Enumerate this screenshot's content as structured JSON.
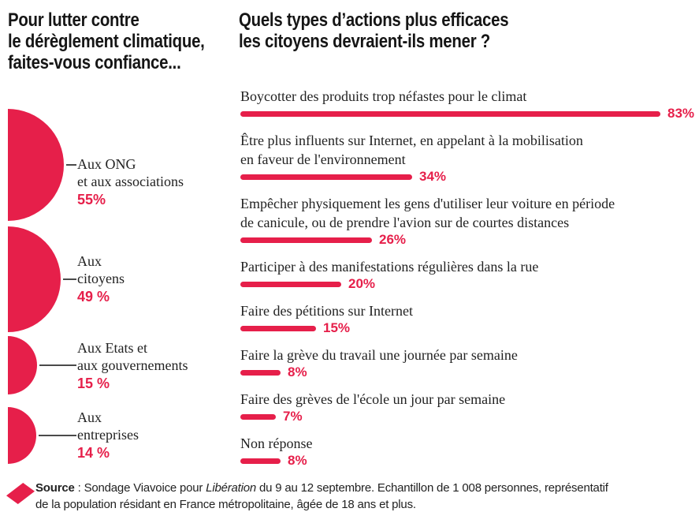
{
  "colors": {
    "red": "#e61f4a",
    "ink": "#151515",
    "serif_ink": "#222222",
    "line": "#4a4a4a"
  },
  "left_chart": {
    "title_lines": [
      "Pour lutter contre",
      "le dérèglement climatique,",
      "faites-vous confiance..."
    ],
    "items": [
      {
        "label_lines": [
          "Aux ONG",
          "et aux associations"
        ],
        "value": 55,
        "pct": "55%"
      },
      {
        "label_lines": [
          "Aux",
          "citoyens"
        ],
        "value": 49,
        "pct": "49 %"
      },
      {
        "label_lines": [
          "Aux Etats et",
          "aux gouvernements"
        ],
        "value": 15,
        "pct": "15 %"
      },
      {
        "label_lines": [
          "Aux",
          "entreprises"
        ],
        "value": 14,
        "pct": "14 %"
      }
    ]
  },
  "right_chart": {
    "title_lines": [
      "Quels types d’actions plus efficaces",
      "les citoyens devraient-ils mener ?"
    ],
    "items": [
      {
        "label_lines": [
          "Boycotter des produits trop néfastes pour le climat"
        ],
        "value": 83,
        "pct": "83%"
      },
      {
        "label_lines": [
          "Être plus influents sur Internet, en appelant à la mobilisation",
          "en faveur de l'environnement"
        ],
        "value": 34,
        "pct": "34%"
      },
      {
        "label_lines": [
          "Empêcher physiquement les gens d'utiliser leur voiture en période",
          "de canicule, ou de prendre l'avion sur de courtes distances"
        ],
        "value": 26,
        "pct": "26%"
      },
      {
        "label_lines": [
          "Participer à des manifestations régulières dans la rue"
        ],
        "value": 20,
        "pct": "20%"
      },
      {
        "label_lines": [
          "Faire des pétitions sur Internet"
        ],
        "value": 15,
        "pct": "15%"
      },
      {
        "label_lines": [
          "Faire la grève du travail une journée par semaine"
        ],
        "value": 8,
        "pct": "8%"
      },
      {
        "label_lines": [
          "Faire des grèves de l'école un jour par semaine"
        ],
        "value": 7,
        "pct": "7%"
      },
      {
        "label_lines": [
          "Non réponse"
        ],
        "value": 8,
        "pct": "8%"
      }
    ]
  },
  "footer": {
    "source_label": "Source",
    "source_sep": " : ",
    "text_before_italic": "Sondage Viavoice pour ",
    "italic_title": "Libération",
    "line1_rest": " du 9 au 12 septembre. Echantillon de 1 008 personnes, représentatif",
    "line2": "de la population résidant en France métropolitaine, âgée de 18 ans et plus."
  },
  "chart_data": [
    {
      "type": "bar",
      "variant": "area-proportional-semicircles",
      "title": "Pour lutter contre le dérèglement climatique, faites-vous confiance...",
      "categories": [
        "Aux ONG et aux associations",
        "Aux citoyens",
        "Aux Etats et aux gouvernements",
        "Aux entreprises"
      ],
      "values": [
        55,
        49,
        15,
        14
      ],
      "unit": "%",
      "legend_position": "none",
      "grid": false
    },
    {
      "type": "bar",
      "orientation": "horizontal",
      "title": "Quels types d’actions plus efficaces les citoyens devraient-ils mener ?",
      "categories": [
        "Boycotter des produits trop néfastes pour le climat",
        "Être plus influents sur Internet, en appelant à la mobilisation en faveur de l'environnement",
        "Empêcher physiquement les gens d'utiliser leur voiture en période de canicule, ou de prendre l'avion sur de courtes distances",
        "Participer à des manifestations régulières dans la rue",
        "Faire des pétitions sur Internet",
        "Faire la grève du travail une journée par semaine",
        "Faire des grèves de l'école un jour par semaine",
        "Non réponse"
      ],
      "values": [
        83,
        34,
        26,
        20,
        15,
        8,
        7,
        8
      ],
      "unit": "%",
      "xlim": [
        0,
        100
      ],
      "grid": false,
      "legend_position": "none",
      "bar_color": "#e61f4a"
    }
  ]
}
